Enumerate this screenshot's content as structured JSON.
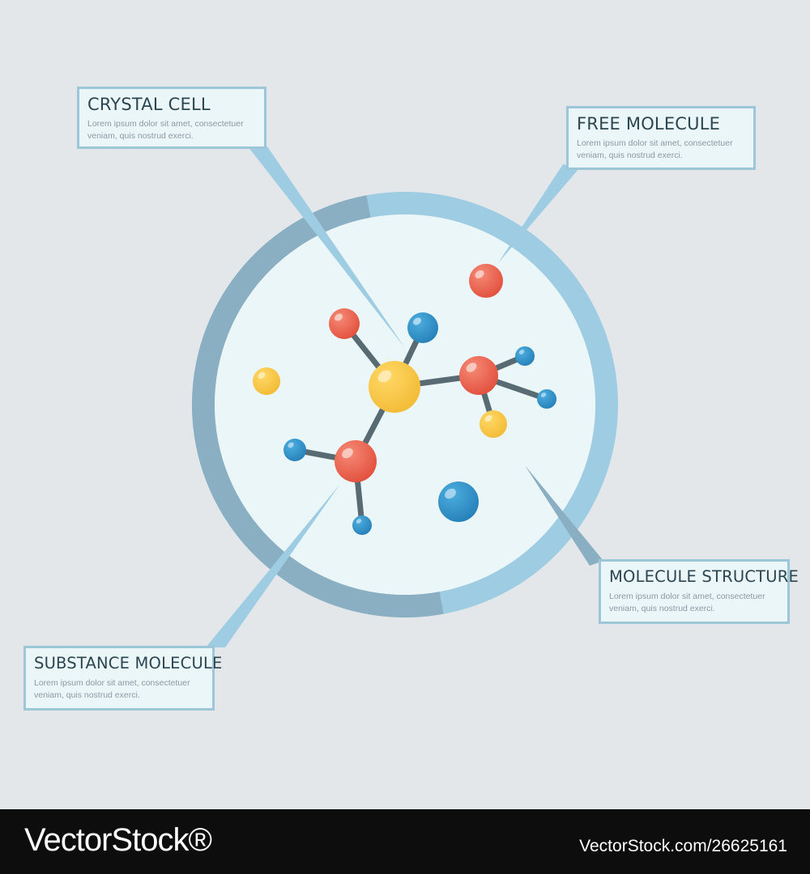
{
  "callouts": {
    "crystal_cell": {
      "title": "CRYSTAL CELL",
      "text": "Lorem ipsum dolor sit amet, consectetuer veniam, quis nostrud exerci."
    },
    "free_molecule": {
      "title": "FREE MOLECULE",
      "text": "Lorem ipsum dolor sit amet, consectetuer veniam, quis nostrud exerci."
    },
    "molecule_structure": {
      "title": "MOLECULE STRUCTURE",
      "text": "Lorem ipsum dolor sit amet, consectetuer veniam, quis nostrud exerci."
    },
    "substance_molecule": {
      "title": "SUBSTANCE MOLECULE",
      "text": "Lorem ipsum dolor sit amet, consectetuer veniam, quis nostrud exerci."
    }
  },
  "colors": {
    "background": "#e3e7e9",
    "ring_light": "#9ecde3",
    "ring_dark": "#8aaec2",
    "inner_disc": "#ebf6f9",
    "atom_red": "#ea5a48",
    "atom_blue": "#2e8fc6",
    "atom_yellow": "#f7c746",
    "bond": "#586a72"
  },
  "footer": {
    "brand": "VectorStock®",
    "asset_id": "VectorStock.com/26625161"
  }
}
